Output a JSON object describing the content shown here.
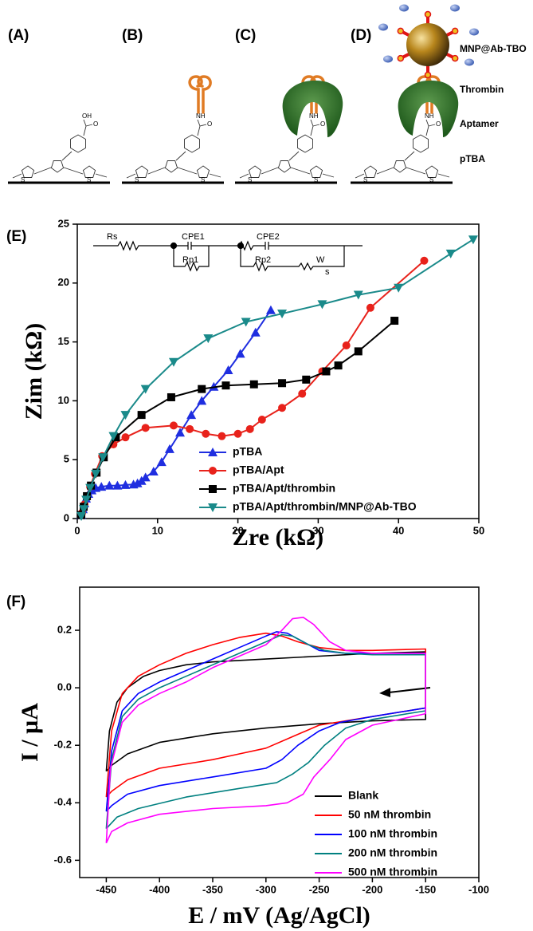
{
  "schematic": {
    "panels": [
      "(A)",
      "(B)",
      "(C)",
      "(D)"
    ],
    "labels": [
      "MNP@Ab-TBO",
      "Thrombin",
      "Aptamer",
      "pTBA"
    ],
    "atoms": [
      "OH",
      "O",
      "NH",
      "S"
    ]
  },
  "chart_data": [
    {
      "type": "line",
      "title": "(E)",
      "x_label": "Zre (kΩ)",
      "y_label": "Zim (kΩ)",
      "xlim": [
        0,
        50
      ],
      "ylim": [
        0,
        25
      ],
      "xticks": [
        0,
        10,
        20,
        30,
        40,
        50
      ],
      "yticks": [
        0,
        5,
        10,
        15,
        20,
        25
      ],
      "legend": "lower center",
      "circuit_labels": [
        "Rs",
        "CPE1",
        "Rp1",
        "CPE2",
        "Rp2",
        "W",
        "s"
      ],
      "series": [
        {
          "name": "pTBA",
          "color": "#1f2ee0",
          "marker": "triangle-up",
          "x": [
            0.5,
            0.7,
            0.9,
            1.1,
            1.4,
            1.8,
            2.3,
            3,
            4,
            5,
            6,
            7,
            7.5,
            8,
            8.5,
            9.5,
            10.5,
            11.5,
            12.8,
            14.2,
            15.5,
            17,
            18.8,
            20.3,
            22.2,
            24.1
          ],
          "values": [
            0.3,
            0.8,
            1.3,
            1.7,
            2.1,
            2.4,
            2.6,
            2.7,
            2.8,
            2.8,
            2.85,
            2.9,
            3.0,
            3.2,
            3.5,
            4.0,
            4.8,
            5.9,
            7.3,
            8.8,
            10.0,
            11.2,
            12.6,
            14.0,
            15.8,
            17.7
          ]
        },
        {
          "name": "pTBA/Apt",
          "color": "#e8221b",
          "marker": "circle",
          "x": [
            0.6,
            0.9,
            1.2,
            1.6,
            2.2,
            3.1,
            4.5,
            6,
            8.5,
            12,
            14,
            16,
            18,
            20,
            21.5,
            23,
            25.5,
            28,
            30.5,
            33.5,
            36.5,
            43.2
          ],
          "values": [
            0.5,
            1.2,
            1.9,
            2.7,
            3.8,
            5.3,
            6.3,
            6.9,
            7.7,
            7.9,
            7.6,
            7.2,
            7.0,
            7.2,
            7.6,
            8.4,
            9.4,
            10.6,
            12.5,
            14.7,
            17.9,
            21.9
          ]
        },
        {
          "name": "pTBA/Apt/thrombin",
          "color": "#000000",
          "marker": "square",
          "x": [
            0.5,
            0.8,
            1.2,
            1.7,
            2.4,
            3.3,
            4.8,
            8,
            11.7,
            15.5,
            18.5,
            22,
            25.5,
            28.5,
            31,
            32.5,
            35,
            39.5
          ],
          "values": [
            0.3,
            1.0,
            1.9,
            2.8,
            3.9,
            5.2,
            6.9,
            8.8,
            10.3,
            11.0,
            11.3,
            11.4,
            11.5,
            11.8,
            12.5,
            13.0,
            14.2,
            16.8
          ]
        },
        {
          "name": "pTBA/Apt/thrombin/MNP@Ab-TBO",
          "color": "#1a8a8a",
          "marker": "triangle-down",
          "x": [
            0.5,
            0.8,
            1.1,
            1.6,
            2.3,
            3.2,
            4.5,
            6,
            8.5,
            12,
            16.3,
            21,
            25.5,
            30.5,
            35,
            40,
            46.5,
            49.3
          ],
          "values": [
            0.2,
            0.8,
            1.6,
            2.6,
            3.8,
            5.2,
            7.0,
            8.8,
            11.0,
            13.3,
            15.3,
            16.7,
            17.4,
            18.2,
            19.0,
            19.6,
            22.5,
            23.7
          ]
        }
      ]
    },
    {
      "type": "line",
      "title": "(F)",
      "x_label": "E / mV (Ag/AgCl)",
      "y_label": "I / µA",
      "xlim": [
        -475,
        -100
      ],
      "ylim": [
        -0.66,
        0.35
      ],
      "xticks": [
        -450,
        -400,
        -350,
        -300,
        -250,
        -200,
        -150,
        -100
      ],
      "yticks": [
        -0.6,
        -0.4,
        -0.2,
        {
          "value": 0,
          "label": "0.0"
        },
        0.2
      ],
      "legend": "lower right",
      "series": [
        {
          "name": "Blank",
          "color": "#000000",
          "x": [
            -450,
            -447,
            -440,
            -430,
            -415,
            -400,
            -375,
            -350,
            -300,
            -250,
            -200,
            -150,
            -150,
            -200,
            -250,
            -300,
            -350,
            -400,
            -430,
            -445,
            -450
          ],
          "values": [
            -0.29,
            -0.15,
            -0.05,
            0.0,
            0.04,
            0.06,
            0.08,
            0.09,
            0.1,
            0.11,
            0.12,
            0.125,
            -0.11,
            -0.115,
            -0.125,
            -0.14,
            -0.16,
            -0.19,
            -0.23,
            -0.27,
            -0.29
          ]
        },
        {
          "name": "50 nM thrombin",
          "color": "#ff0000",
          "x": [
            -450,
            -445,
            -435,
            -420,
            -400,
            -375,
            -350,
            -325,
            -300,
            -285,
            -270,
            -250,
            -225,
            -200,
            -150,
            -150,
            -200,
            -250,
            -275,
            -300,
            -325,
            -350,
            -400,
            -430,
            -445,
            -450
          ],
          "values": [
            -0.38,
            -0.15,
            -0.02,
            0.04,
            0.08,
            0.12,
            0.15,
            0.175,
            0.19,
            0.18,
            0.16,
            0.14,
            0.13,
            0.13,
            0.135,
            -0.07,
            -0.1,
            -0.13,
            -0.17,
            -0.21,
            -0.23,
            -0.25,
            -0.28,
            -0.32,
            -0.36,
            -0.38
          ]
        },
        {
          "name": "100 nM thrombin",
          "color": "#0000ff",
          "x": [
            -450,
            -445,
            -435,
            -420,
            -400,
            -375,
            -350,
            -325,
            -300,
            -290,
            -280,
            -265,
            -250,
            -225,
            -200,
            -150,
            -150,
            -200,
            -230,
            -250,
            -270,
            -285,
            -300,
            -350,
            -400,
            -430,
            -445,
            -450
          ],
          "values": [
            -0.43,
            -0.22,
            -0.08,
            -0.02,
            0.02,
            0.06,
            0.1,
            0.14,
            0.18,
            0.195,
            0.19,
            0.16,
            0.13,
            0.12,
            0.12,
            0.12,
            -0.07,
            -0.1,
            -0.12,
            -0.15,
            -0.2,
            -0.25,
            -0.28,
            -0.31,
            -0.34,
            -0.37,
            -0.41,
            -0.43
          ]
        },
        {
          "name": "200 nM thrombin",
          "color": "#008080",
          "x": [
            -450,
            -445,
            -435,
            -420,
            -400,
            -375,
            -350,
            -325,
            -300,
            -285,
            -275,
            -260,
            -245,
            -225,
            -200,
            -150,
            -150,
            -200,
            -225,
            -245,
            -260,
            -275,
            -290,
            -325,
            -375,
            -420,
            -440,
            -450
          ],
          "values": [
            -0.49,
            -0.25,
            -0.1,
            -0.04,
            0.0,
            0.04,
            0.08,
            0.12,
            0.16,
            0.185,
            0.18,
            0.15,
            0.13,
            0.12,
            0.115,
            0.115,
            -0.08,
            -0.11,
            -0.14,
            -0.2,
            -0.26,
            -0.3,
            -0.33,
            -0.35,
            -0.38,
            -0.42,
            -0.45,
            -0.49
          ]
        },
        {
          "name": "500 nM thrombin",
          "color": "#ff00ff",
          "x": [
            -450,
            -446,
            -435,
            -420,
            -400,
            -375,
            -350,
            -325,
            -300,
            -285,
            -275,
            -265,
            -255,
            -240,
            -225,
            -200,
            -150,
            -150,
            -200,
            -225,
            -240,
            -255,
            -265,
            -280,
            -300,
            -350,
            -400,
            -430,
            -445,
            -450
          ],
          "values": [
            -0.54,
            -0.28,
            -0.12,
            -0.06,
            -0.02,
            0.02,
            0.07,
            0.11,
            0.15,
            0.2,
            0.24,
            0.245,
            0.22,
            0.16,
            0.13,
            0.12,
            0.12,
            -0.09,
            -0.13,
            -0.18,
            -0.25,
            -0.31,
            -0.37,
            -0.4,
            -0.41,
            -0.42,
            -0.44,
            -0.47,
            -0.5,
            -0.54
          ]
        }
      ]
    }
  ]
}
